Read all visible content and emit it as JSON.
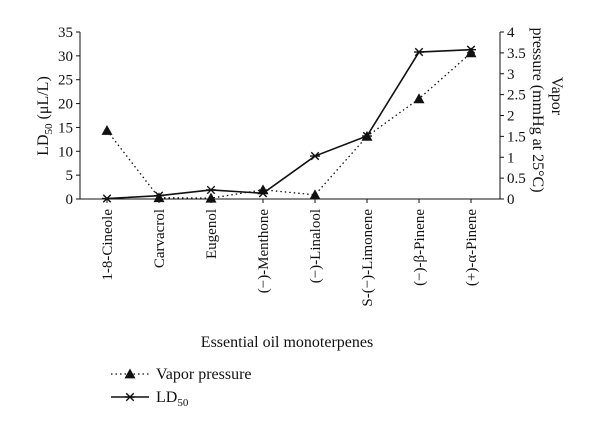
{
  "chart_data": {
    "type": "line",
    "xlabel": "Essential oil monoterpenes",
    "categories": [
      "1-8-Cineole",
      "Carvacrol",
      "Eugenol",
      "(−)-Menthone",
      "(−)-Linalool",
      "S-(−)-Limonene",
      "(−)-β-Pinene",
      "(+)-α-Pinene"
    ],
    "y_left": {
      "label_main": "LD",
      "label_sub": "50",
      "label_unit": " (μL/L)",
      "lim": [
        0,
        35
      ],
      "ticks": [
        "0",
        "5",
        "10",
        "15",
        "20",
        "25",
        "30",
        "35"
      ]
    },
    "y_right": {
      "label_line1": "Vapor",
      "label_line2": "pressure (mmHg at 25°C)",
      "lim": [
        0,
        4
      ],
      "ticks": [
        "0",
        "0.5",
        "1",
        "1.5",
        "2",
        "2.5",
        "3",
        "3.5",
        "4"
      ]
    },
    "series": [
      {
        "name": "Vapor pressure",
        "axis": "right",
        "style": "dotted",
        "marker": "triangle",
        "values": [
          1.64,
          0.03,
          0.02,
          0.22,
          0.1,
          1.5,
          2.4,
          3.5
        ]
      },
      {
        "name": "LD",
        "name_sub": "50",
        "axis": "left",
        "style": "solid",
        "marker": "asterisk",
        "values": [
          0.1,
          0.7,
          1.9,
          1.2,
          9.0,
          13.2,
          30.8,
          31.3
        ]
      }
    ],
    "legend_position": "bottom-left",
    "grid": false
  }
}
